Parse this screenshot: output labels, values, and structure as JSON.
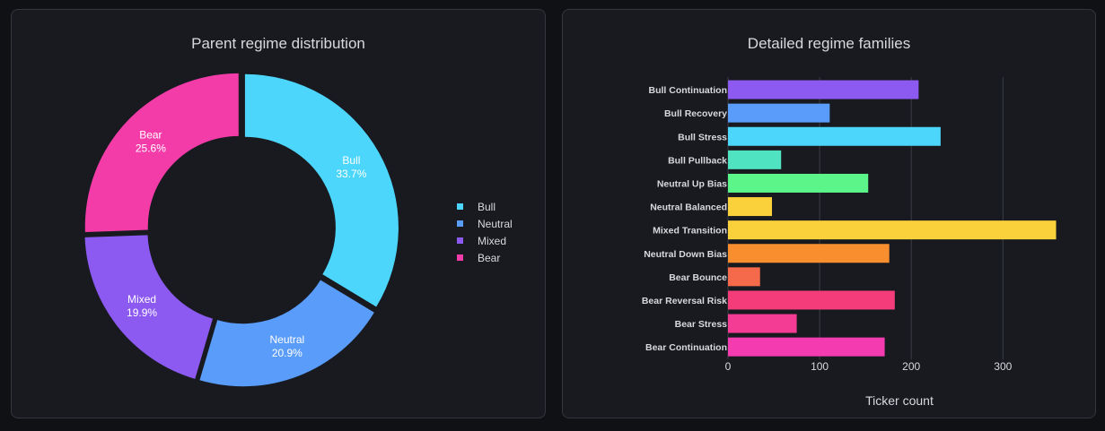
{
  "left": {
    "title": "Parent regime distribution"
  },
  "right": {
    "title": "Detailed regime families"
  },
  "colors": {
    "bg": "#101114",
    "panel": "#181a20",
    "border": "#33363d",
    "text": "#d7d9de"
  },
  "chart_data": [
    {
      "type": "pie",
      "title": "Parent regime distribution",
      "donut": true,
      "categories": [
        "Bull",
        "Neutral",
        "Mixed",
        "Bear"
      ],
      "values": [
        33.7,
        20.9,
        19.9,
        25.6
      ],
      "labels": [
        "33.7%",
        "20.9%",
        "19.9%",
        "25.6%"
      ],
      "colors": [
        "#4dd6fc",
        "#5a9cfa",
        "#8c59f1",
        "#f43ca9"
      ],
      "legend": "right"
    },
    {
      "type": "bar",
      "orientation": "horizontal",
      "title": "Detailed regime families",
      "xlabel": "Ticker count",
      "ylabel": "",
      "xlim": [
        0,
        370
      ],
      "xticks": [
        0,
        100,
        200,
        300
      ],
      "grid": true,
      "categories": [
        "Bull Continuation",
        "Bull Recovery",
        "Bull Stress",
        "Bull Pullback",
        "Neutral Up Bias",
        "Neutral Balanced",
        "Mixed Transition",
        "Neutral Down Bias",
        "Bear Bounce",
        "Bear Reversal Risk",
        "Bear Stress",
        "Bear Continuation"
      ],
      "values": [
        208,
        111,
        232,
        58,
        153,
        48,
        358,
        176,
        35,
        182,
        75,
        171
      ],
      "colors": [
        "#8c59f1",
        "#5a9cfa",
        "#4dd6fc",
        "#4fe3c1",
        "#5cf58a",
        "#fad13a",
        "#fad13a",
        "#f88e2e",
        "#f56a4a",
        "#f43c7a",
        "#f43c95",
        "#f43cb0"
      ]
    }
  ]
}
